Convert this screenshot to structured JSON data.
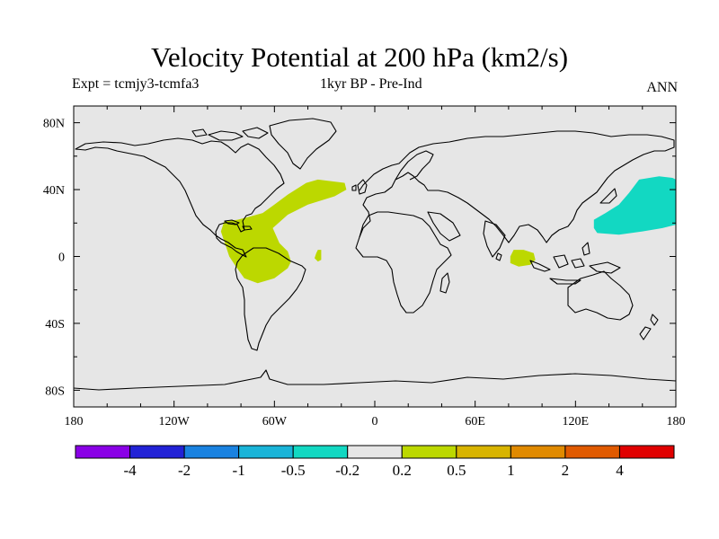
{
  "title": "Velocity Potential at 200 hPa (km2/s)",
  "subtitle_left": "Expt = tcmjy3-tcmfa3",
  "subtitle_center": "1kyr BP - Pre-Ind",
  "subtitle_right": "ANN",
  "chart_data": {
    "type": "map_contour",
    "projection": "cylindrical equidistant",
    "x_range": [
      -180,
      180
    ],
    "y_range": [
      -90,
      90
    ],
    "x_ticks": [
      {
        "value": -180,
        "label": "180"
      },
      {
        "value": -120,
        "label": "120W"
      },
      {
        "value": -60,
        "label": "60W"
      },
      {
        "value": 0,
        "label": "0"
      },
      {
        "value": 60,
        "label": "60E"
      },
      {
        "value": 120,
        "label": "120E"
      },
      {
        "value": 180,
        "label": "180"
      }
    ],
    "y_ticks": [
      {
        "value": 80,
        "label": "80N"
      },
      {
        "value": 40,
        "label": "40N"
      },
      {
        "value": 0,
        "label": "0"
      },
      {
        "value": -40,
        "label": "40S"
      },
      {
        "value": -80,
        "label": "80S"
      }
    ],
    "background_color": "#e6e6e6",
    "colorbar": {
      "colors": [
        "#8a00e6",
        "#2222d6",
        "#1a82e0",
        "#1ab4d8",
        "#12d8c2",
        "#e6e6e6",
        "#bcd800",
        "#d8b400",
        "#e08a00",
        "#e05a00",
        "#e00000"
      ],
      "labels": [
        "-4",
        "-2",
        "-1",
        "-0.5",
        "-0.2",
        "0.2",
        "0.5",
        "1",
        "2",
        "4"
      ]
    },
    "anomaly_regions": [
      {
        "level": "0.2 to 0.5",
        "color": "#bcd800",
        "polygon": [
          [
            -41,
            44
          ],
          [
            -34,
            46
          ],
          [
            -18,
            44
          ],
          [
            -17,
            40
          ],
          [
            -24,
            36
          ],
          [
            -40,
            31
          ],
          [
            -52,
            25
          ],
          [
            -61,
            17
          ],
          [
            -57,
            8
          ],
          [
            -52,
            3
          ],
          [
            -50,
            -3
          ],
          [
            -52,
            -7
          ],
          [
            -60,
            -13
          ],
          [
            -70,
            -16
          ],
          [
            -78,
            -13
          ],
          [
            -83,
            -6
          ],
          [
            -87,
            0
          ],
          [
            -89,
            6
          ],
          [
            -92,
            15
          ],
          [
            -90,
            21
          ],
          [
            -82,
            22
          ],
          [
            -74,
            24
          ],
          [
            -67,
            26
          ],
          [
            -60,
            31
          ],
          [
            -52,
            37
          ]
        ]
      },
      {
        "level": "0.2 to 0.5",
        "color": "#bcd800",
        "polygon": [
          [
            -34,
            4
          ],
          [
            -32,
            4
          ],
          [
            -32,
            -2
          ],
          [
            -34,
            -3
          ],
          [
            -36,
            -1
          ],
          [
            -35,
            2
          ]
        ]
      },
      {
        "level": "0.2 to 0.5",
        "color": "#bcd800",
        "polygon": [
          [
            83,
            4
          ],
          [
            89,
            4
          ],
          [
            95,
            2
          ],
          [
            96,
            -2
          ],
          [
            93,
            -5
          ],
          [
            86,
            -6
          ],
          [
            81,
            -4
          ],
          [
            81,
            0
          ]
        ]
      },
      {
        "level": "-0.5 to -0.2",
        "color": "#12d8c2",
        "polygon": [
          [
            158,
            46
          ],
          [
            170,
            48
          ],
          [
            178,
            47
          ],
          [
            180,
            46
          ],
          [
            180,
            19
          ],
          [
            172,
            17
          ],
          [
            160,
            15
          ],
          [
            146,
            13
          ],
          [
            133,
            14
          ],
          [
            131,
            17
          ],
          [
            131,
            22
          ],
          [
            138,
            26
          ],
          [
            146,
            31
          ],
          [
            152,
            38
          ]
        ]
      }
    ],
    "land_outline_color": "#000000"
  }
}
